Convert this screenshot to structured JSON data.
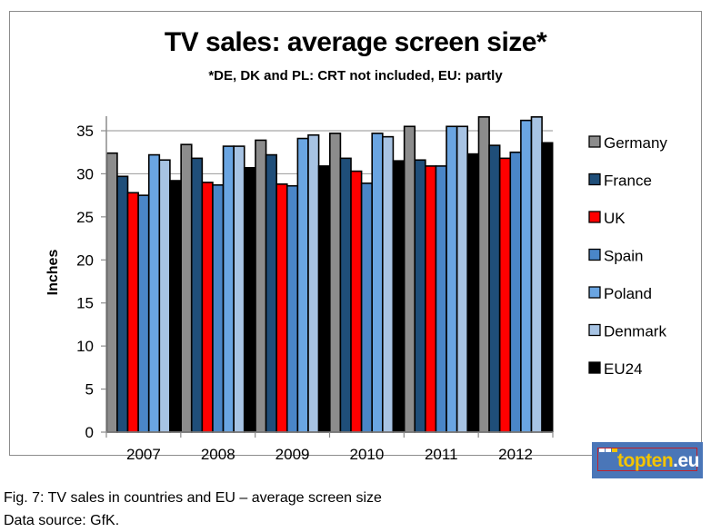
{
  "chart_data": {
    "type": "bar",
    "title": "TV sales: average screen size*",
    "subtitle": "*DE, DK and PL: CRT not included, EU: partly",
    "xlabel": "",
    "ylabel": "Inches",
    "ylim": [
      0,
      35
    ],
    "yticks": [
      0,
      5,
      10,
      15,
      20,
      25,
      30,
      35
    ],
    "grid": true,
    "legend_position": "right",
    "categories": [
      "2007",
      "2008",
      "2009",
      "2010",
      "2011",
      "2012"
    ],
    "series": [
      {
        "name": "Germany",
        "color": "#8c8c8c",
        "values": [
          32.4,
          33.4,
          33.9,
          34.7,
          35.5,
          36.6
        ]
      },
      {
        "name": "France",
        "color": "#1f4e79",
        "values": [
          29.7,
          31.8,
          32.2,
          31.8,
          31.6,
          33.3
        ]
      },
      {
        "name": "UK",
        "color": "#ff0000",
        "values": [
          27.8,
          29.0,
          28.8,
          30.3,
          30.9,
          31.8
        ]
      },
      {
        "name": "Spain",
        "color": "#4a86c8",
        "values": [
          27.5,
          28.7,
          28.6,
          28.9,
          30.9,
          32.5
        ]
      },
      {
        "name": "Poland",
        "color": "#6aa5e2",
        "values": [
          32.2,
          33.2,
          34.1,
          34.7,
          35.5,
          36.2
        ]
      },
      {
        "name": "Denmark",
        "color": "#a7c3e3",
        "values": [
          31.6,
          33.2,
          34.5,
          34.3,
          35.5,
          36.6
        ]
      },
      {
        "name": "EU24",
        "color": "#000000",
        "values": [
          29.2,
          30.7,
          30.9,
          31.5,
          32.3,
          33.6
        ]
      }
    ]
  },
  "logo": {
    "part1": "topten",
    "part2": ".eu"
  },
  "caption": {
    "line1": "Fig. 7: TV sales in countries and EU – average screen size",
    "line2": "Data source: GfK."
  }
}
